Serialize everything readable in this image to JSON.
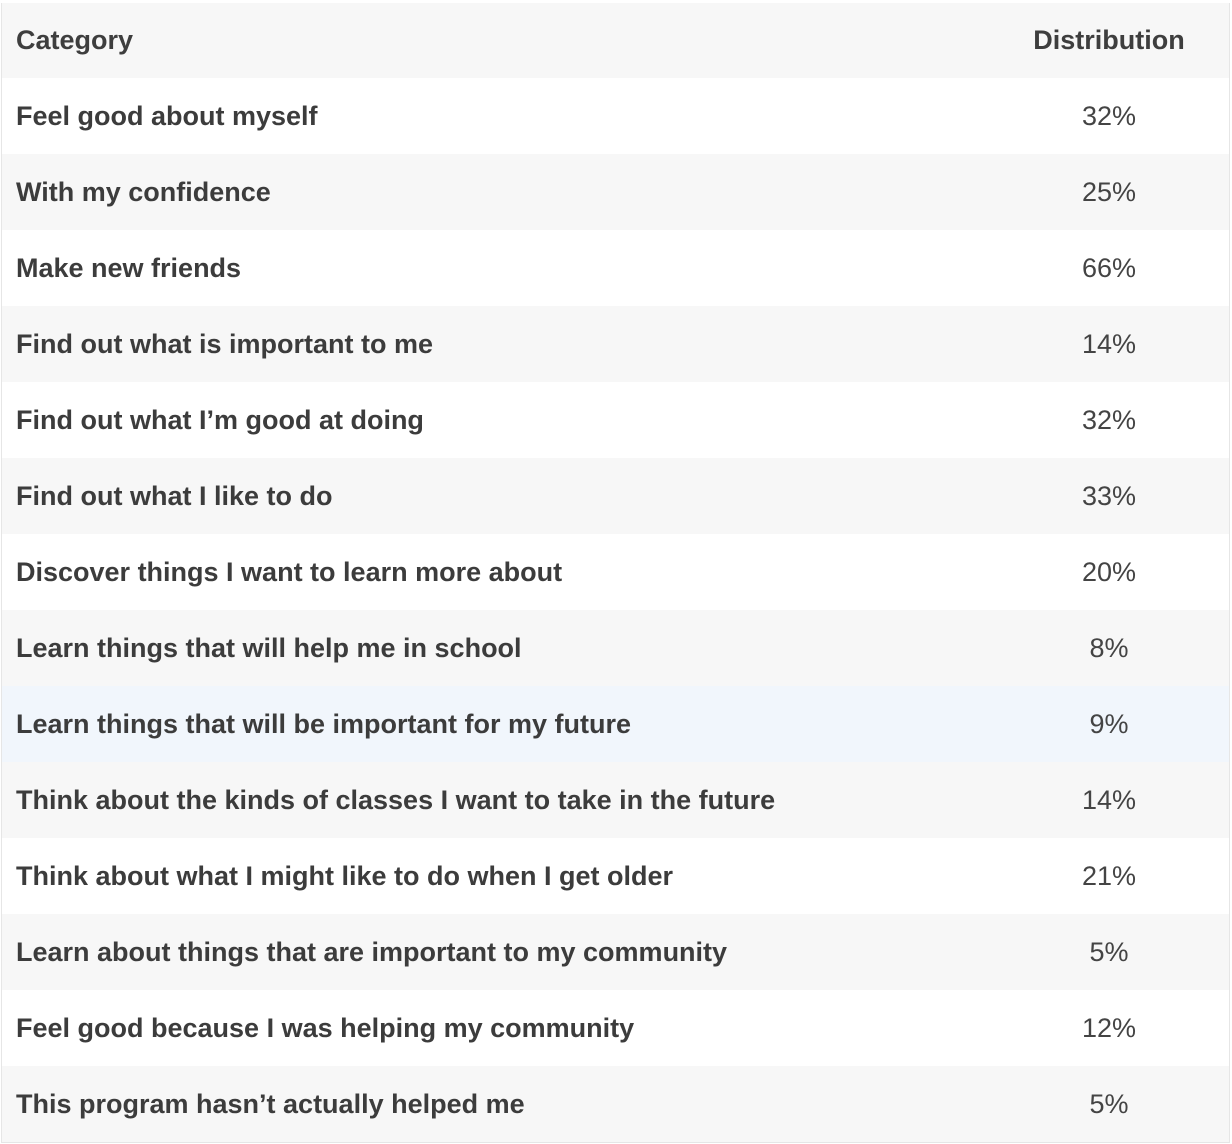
{
  "table": {
    "headers": {
      "category": "Category",
      "distribution": "Distribution"
    },
    "rows": [
      {
        "category": "Feel good about myself",
        "distribution": "32%"
      },
      {
        "category": "With my confidence",
        "distribution": "25%"
      },
      {
        "category": "Make new friends",
        "distribution": "66%"
      },
      {
        "category": "Find out what is important to me",
        "distribution": "14%"
      },
      {
        "category": "Find out what I’m good at doing",
        "distribution": "32%"
      },
      {
        "category": "Find out what I like to do",
        "distribution": "33%"
      },
      {
        "category": "Discover things I want to learn more about",
        "distribution": "20%"
      },
      {
        "category": "Learn things that will help me in school",
        "distribution": "8%"
      },
      {
        "category": "Learn things that will be important for my future",
        "distribution": "9%"
      },
      {
        "category": "Think about the kinds of classes I want to take in the future",
        "distribution": "14%"
      },
      {
        "category": "Think about what I might like to do when I get older",
        "distribution": "21%"
      },
      {
        "category": "Learn about things that are important to my community",
        "distribution": "5%"
      },
      {
        "category": "Feel good because I was helping my community",
        "distribution": "12%"
      },
      {
        "category": "This program hasn’t actually helped me",
        "distribution": "5%"
      }
    ],
    "highlight_color": "#f1f6fc",
    "stripe_color": "#f7f7f7"
  }
}
